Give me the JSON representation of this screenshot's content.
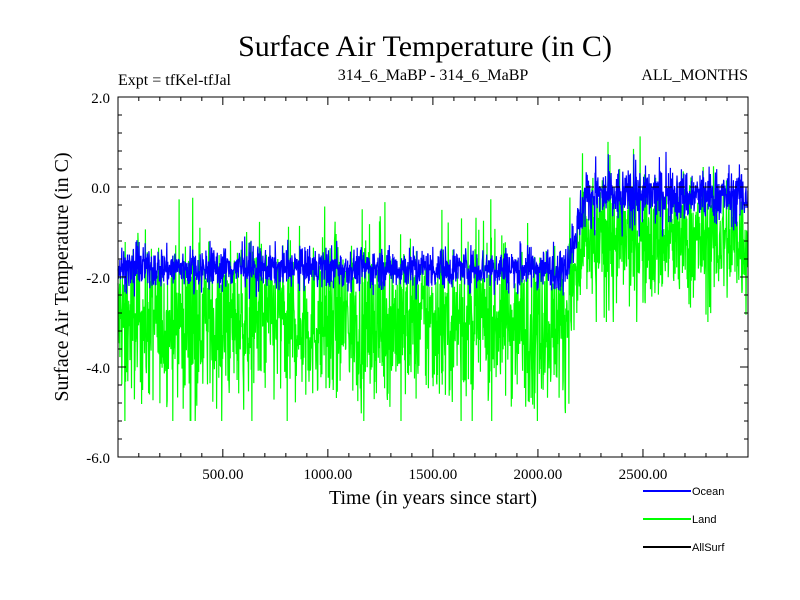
{
  "header": {
    "title": "Surface Air Temperature (in C)",
    "expt": "Expt = tfKel-tfJal",
    "comparison": "314_6_MaBP - 314_6_MaBP",
    "months": "ALL_MONTHS"
  },
  "chart_data": {
    "type": "line",
    "xlabel": "Time (in years since start)",
    "ylabel": "Surface Air Temperature (in C)",
    "xlim": [
      1,
      3000
    ],
    "ylim": [
      -6.0,
      2.0
    ],
    "x_ticks": [
      500,
      1000,
      1500,
      2000,
      2500
    ],
    "x_tick_labels": [
      "500.00",
      "1000.00",
      "1500.00",
      "2000.00",
      "2500.00"
    ],
    "y_ticks": [
      -6.0,
      -4.0,
      -2.0,
      0.0,
      2.0
    ],
    "y_tick_labels": [
      "-6.0",
      "-4.0",
      "-2.0",
      "0.0",
      "2.0"
    ],
    "reference_line": {
      "y": 0.0,
      "style": "dashed"
    },
    "grid": false,
    "legend_position": "bottom-right",
    "series": [
      {
        "name": "Land",
        "color": "#00ff00",
        "segments": [
          {
            "x_start": 1,
            "x_end": 2130,
            "mean": -3.0,
            "range": [
              -5.2,
              0.1
            ]
          },
          {
            "x_start": 2230,
            "x_end": 3000,
            "mean": -1.2,
            "range": [
              -3.0,
              1.5
            ]
          }
        ],
        "transition": [
          2130,
          2230
        ]
      },
      {
        "name": "Ocean",
        "color": "#0000ff",
        "segments": [
          {
            "x_start": 1,
            "x_end": 2130,
            "mean": -1.8,
            "range": [
              -2.5,
              -1.1
            ]
          },
          {
            "x_start": 2230,
            "x_end": 3000,
            "mean": -0.2,
            "range": [
              -1.1,
              0.8
            ]
          }
        ],
        "transition": [
          2130,
          2230
        ]
      },
      {
        "name": "AllSurf",
        "color": "#000000",
        "segments": []
      }
    ]
  }
}
